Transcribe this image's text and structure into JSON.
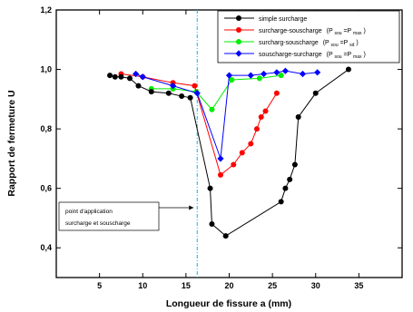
{
  "chart_data": {
    "type": "line",
    "title": "",
    "xlabel": "Longueur de fissure a (mm)",
    "ylabel": "Rapport de fermeture U",
    "xlim": [
      0,
      40
    ],
    "ylim": [
      0.3,
      1.2
    ],
    "xticks": [
      5,
      10,
      15,
      20,
      25,
      30,
      35
    ],
    "yticks": [
      0.4,
      0.6,
      0.8,
      1.0,
      1.2
    ],
    "ytick_labels": [
      "0,4",
      "0,6",
      "0,8",
      "1,0",
      "1,2"
    ],
    "grid": false,
    "legend_position": "top-right",
    "vertical_line": {
      "x": 16.3,
      "color": "#00bbe0",
      "style": "dash-dot"
    },
    "annotation": {
      "line1": "point d'application",
      "line2": "surcharge et souscharge",
      "target_x": 16.3,
      "target_y": 0.535
    },
    "series": [
      {
        "name": "simple surcharge",
        "color": "#000000",
        "marker": "circle",
        "x": [
          6.2,
          6.8,
          7.5,
          8.5,
          9.5,
          11,
          13,
          14.5,
          15.5,
          17.8,
          18,
          19.6,
          26,
          26.5,
          27,
          27.6,
          28,
          30,
          33.8
        ],
        "y": [
          0.98,
          0.975,
          0.975,
          0.97,
          0.945,
          0.925,
          0.92,
          0.91,
          0.905,
          0.6,
          0.48,
          0.44,
          0.555,
          0.6,
          0.63,
          0.68,
          0.84,
          0.92,
          1.0
        ]
      },
      {
        "name_main": "surcharge-souscharge",
        "name_sub": "(P",
        "name_sub2": "sou",
        "name_sub3": "=P",
        "name_sub4": "max",
        "name_sub5": ")",
        "color": "#ff0000",
        "marker": "circle",
        "x": [
          7.5,
          10,
          13.5,
          16,
          19,
          20.5,
          21.5,
          22.5,
          23.2,
          23.7,
          24.2,
          25.5
        ],
        "y": [
          0.985,
          0.975,
          0.955,
          0.945,
          0.645,
          0.68,
          0.72,
          0.75,
          0.8,
          0.84,
          0.86,
          0.92
        ]
      },
      {
        "name_main": "surcharg-souscharge",
        "name_sub": "(P",
        "name_sub2": "sou",
        "name_sub3": "=P",
        "name_sub4": "sd",
        "name_sub5": ")",
        "color": "#00ee00",
        "marker": "circle",
        "x": [
          11,
          13.5,
          16.2,
          18,
          20.3,
          23.5,
          26
        ],
        "y": [
          0.935,
          0.935,
          0.925,
          0.865,
          0.965,
          0.97,
          0.98
        ]
      },
      {
        "name_main": "souscharge-surcharge",
        "name_sub": "(P",
        "name_sub2": "sou",
        "name_sub3": "=P",
        "name_sub4": "max",
        "name_sub5": ")",
        "color": "#0000ff",
        "marker": "diamond",
        "x": [
          9.2,
          10,
          13.5,
          16.3,
          19,
          20,
          22.5,
          24,
          25.5,
          26.5,
          28.5,
          30.2
        ],
        "y": [
          0.985,
          0.975,
          0.945,
          0.92,
          0.7,
          0.98,
          0.98,
          0.985,
          0.99,
          0.995,
          0.985,
          0.99
        ]
      }
    ]
  }
}
